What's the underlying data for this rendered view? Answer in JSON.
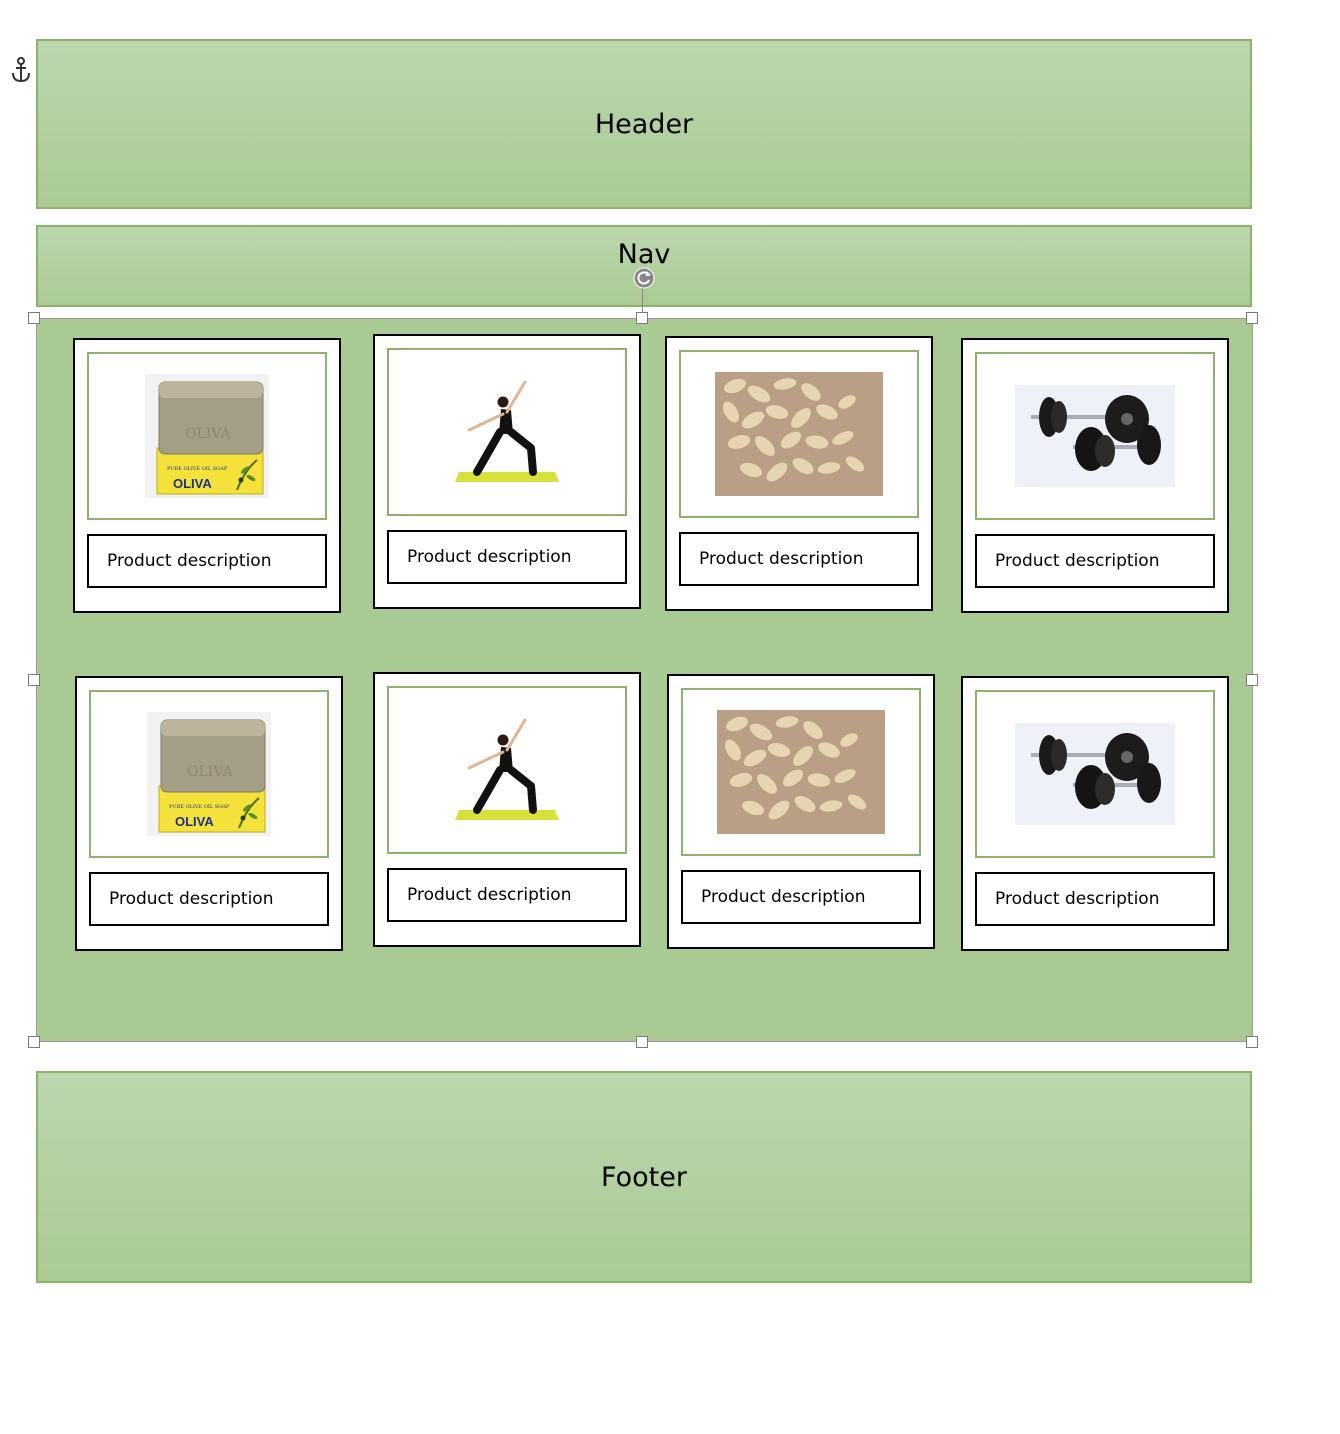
{
  "header": {
    "title": "Header"
  },
  "nav": {
    "title": "Nav"
  },
  "footer": {
    "title": "Footer"
  },
  "products": [
    {
      "image": "olive-oil-soap-image",
      "logo_text": "OLIVA",
      "box_text": "PURE OLIVE OIL SOAP",
      "bar_text": "OLIVA",
      "description": "Product description"
    },
    {
      "image": "yoga-pose-image",
      "description": "Product description"
    },
    {
      "image": "rolled-oats-image",
      "description": "Product description"
    },
    {
      "image": "dumbbells-image",
      "description": "Product description"
    },
    {
      "image": "olive-oil-soap-image",
      "logo_text": "OLIVA",
      "box_text": "PURE OLIVE OIL SOAP",
      "bar_text": "OLIVA",
      "description": "Product description"
    },
    {
      "image": "yoga-pose-image",
      "description": "Product description"
    },
    {
      "image": "rolled-oats-image",
      "description": "Product description"
    },
    {
      "image": "dumbbells-image",
      "description": "Product description"
    }
  ],
  "icons": {
    "anchor": "anchor-icon",
    "rotate": "rotate-handle-icon"
  },
  "colors": {
    "band_fill": "#a9cb93",
    "band_border": "#8db36b",
    "card_border": "#000000"
  }
}
